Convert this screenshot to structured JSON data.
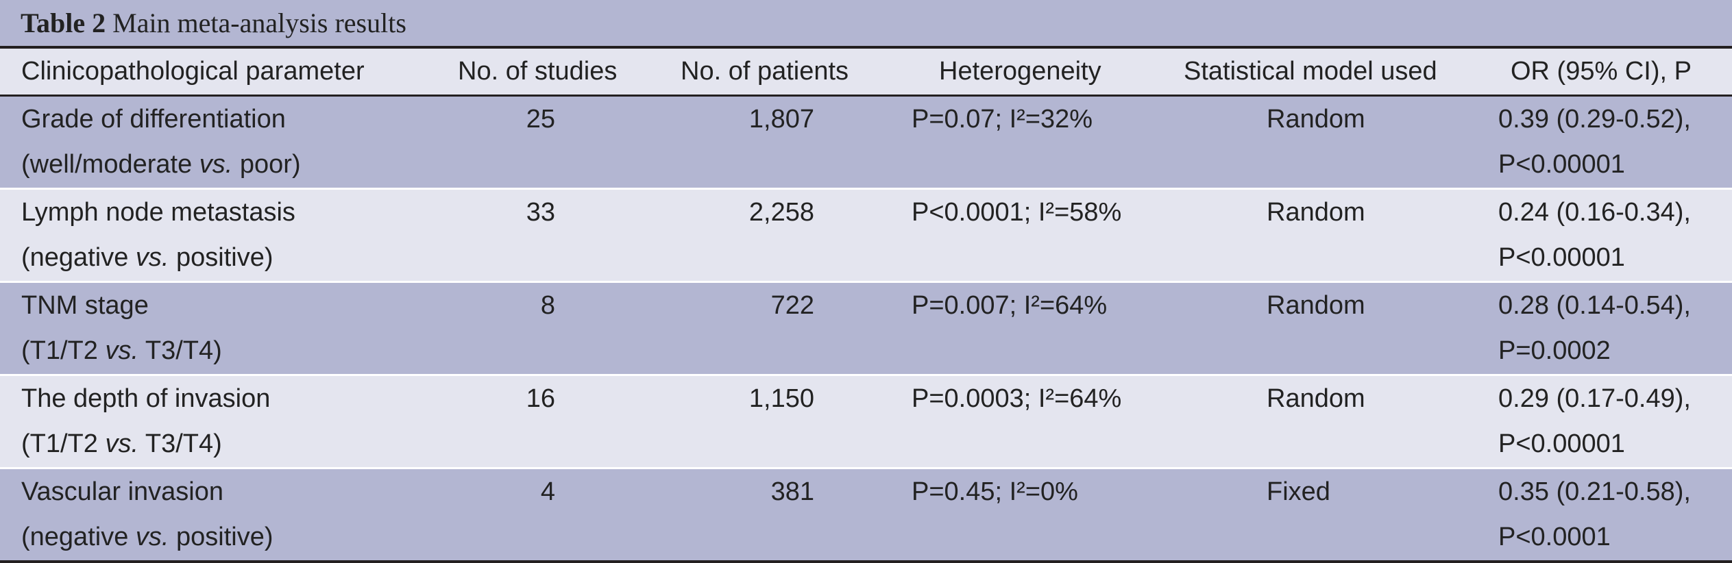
{
  "caption": {
    "label": "Table 2",
    "title": "Main meta-analysis results"
  },
  "headers": {
    "param": "Clinicopathological parameter",
    "studies": "No. of studies",
    "patients": "No. of patients",
    "heterogeneity": "Heterogeneity",
    "model": "Statistical model used",
    "or": "OR (95% CI), P"
  },
  "rows": [
    {
      "param_line1": "Grade of differentiation",
      "param_pre": "(well/moderate ",
      "param_vs": "vs.",
      "param_post": " poor)",
      "studies": "25",
      "patients": "1,807",
      "heterogeneity": "P=0.07; I²=32%",
      "model": "Random",
      "or_line1": "0.39 (0.29-0.52),",
      "or_line2": "P<0.00001"
    },
    {
      "param_line1": "Lymph node metastasis",
      "param_pre": "(negative ",
      "param_vs": "vs.",
      "param_post": " positive)",
      "studies": "33",
      "patients": "2,258",
      "heterogeneity": "P<0.0001; I²=58%",
      "model": "Random",
      "or_line1": "0.24 (0.16-0.34),",
      "or_line2": "P<0.00001"
    },
    {
      "param_line1": "TNM stage",
      "param_pre": "(T1/T2 ",
      "param_vs": "vs.",
      "param_post": " T3/T4)",
      "studies": "8",
      "patients": "722",
      "heterogeneity": "P=0.007; I²=64%",
      "model": "Random",
      "or_line1": "0.28 (0.14-0.54),",
      "or_line2": "P=0.0002"
    },
    {
      "param_line1": "The depth of invasion",
      "param_pre": "(T1/T2 ",
      "param_vs": "vs.",
      "param_post": " T3/T4)",
      "studies": "16",
      "patients": "1,150",
      "heterogeneity": "P=0.0003; I²=64%",
      "model": "Random",
      "or_line1": "0.29 (0.17-0.49),",
      "or_line2": "P<0.00001"
    },
    {
      "param_line1": "Vascular invasion",
      "param_pre": "(negative ",
      "param_vs": "vs.",
      "param_post": " positive)",
      "studies": "4",
      "patients": "381",
      "heterogeneity": "P=0.45; I²=0%",
      "model": "Fixed",
      "or_line1": "0.35 (0.21-0.58),",
      "or_line2": "P<0.0001"
    }
  ],
  "colors": {
    "dark_row": "#b3b6d2",
    "light_row": "#e4e5ef",
    "rule": "#231f20"
  }
}
